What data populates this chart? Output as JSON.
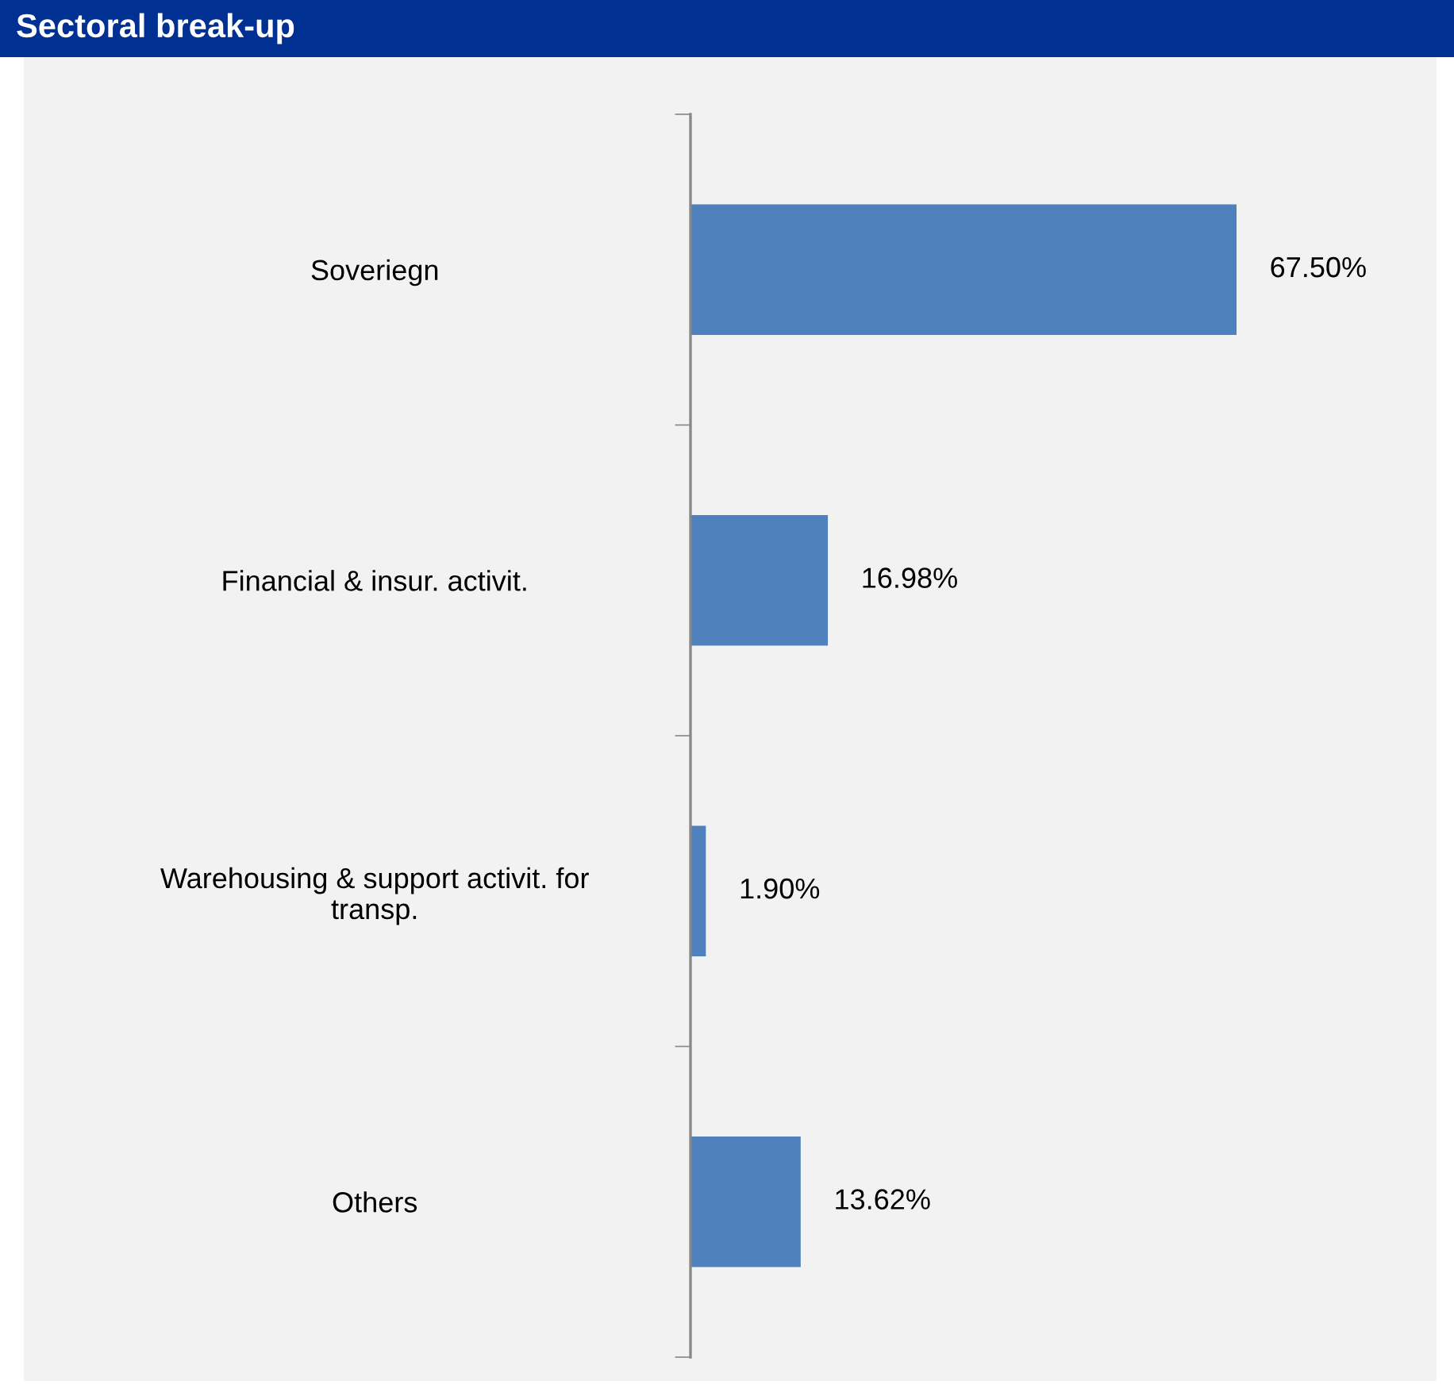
{
  "chart_data": {
    "type": "bar",
    "orientation": "horizontal",
    "title": "Sectoral break-up",
    "categories": [
      "Soveriegn",
      "Financial & insur. activit.",
      "Warehousing & support activit. for\ntransp.",
      "Others"
    ],
    "values": [
      67.5,
      16.98,
      1.9,
      13.62
    ],
    "value_labels": [
      "67.50%",
      "16.98%",
      "1.90%",
      "13.62%"
    ],
    "color": "#4f81bd",
    "grid": false,
    "legend": false
  }
}
